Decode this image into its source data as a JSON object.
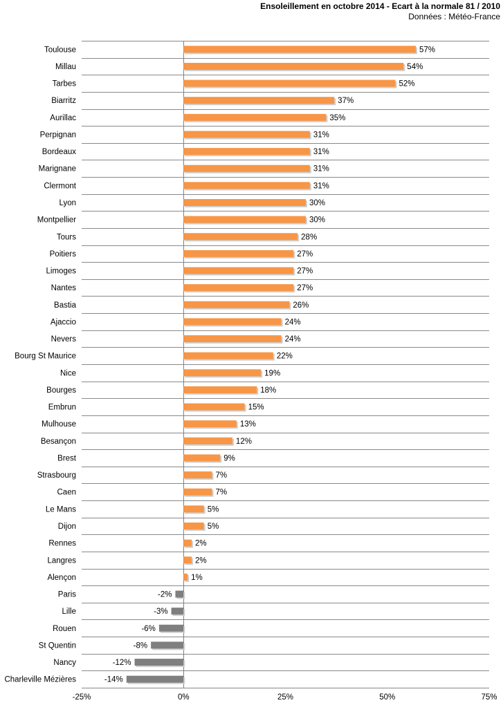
{
  "chart_data": {
    "type": "bar",
    "orientation": "horizontal",
    "title": "Ensoleillement  en octobre 2014 - Ecart à la normale 81 / 2010",
    "subtitle": "Données : Météo-France",
    "xlabel": "",
    "ylabel": "",
    "xlim": [
      -25,
      75
    ],
    "x_ticks": [
      -25,
      0,
      25,
      50,
      75
    ],
    "x_tick_labels": [
      "-25%",
      "0%",
      "25%",
      "50%",
      "75%"
    ],
    "value_suffix": "%",
    "grid": "horizontal separators between categories",
    "legend": "none",
    "colors": {
      "positive": "#f79646",
      "negative": "#7f7f7f",
      "grid": "#888888",
      "axis": "#808080"
    },
    "categories": [
      "Toulouse",
      "Millau",
      "Tarbes",
      "Biarritz",
      "Aurillac",
      "Perpignan",
      "Bordeaux",
      "Marignane",
      "Clermont",
      "Lyon",
      "Montpellier",
      "Tours",
      "Poitiers",
      "Limoges",
      "Nantes",
      "Bastia",
      "Ajaccio",
      "Nevers",
      "Bourg St Maurice",
      "Nice",
      "Bourges",
      "Embrun",
      "Mulhouse",
      "Besançon",
      "Brest",
      "Strasbourg",
      "Caen",
      "Le Mans",
      "Dijon",
      "Rennes",
      "Langres",
      "Alençon",
      "Paris",
      "Lille",
      "Rouen",
      "St Quentin",
      "Nancy",
      "Charleville Mézières"
    ],
    "values": [
      57,
      54,
      52,
      37,
      35,
      31,
      31,
      31,
      31,
      30,
      30,
      28,
      27,
      27,
      27,
      26,
      24,
      24,
      22,
      19,
      18,
      15,
      13,
      12,
      9,
      7,
      7,
      5,
      5,
      2,
      2,
      1,
      -2,
      -3,
      -6,
      -8,
      -12,
      -14
    ]
  }
}
